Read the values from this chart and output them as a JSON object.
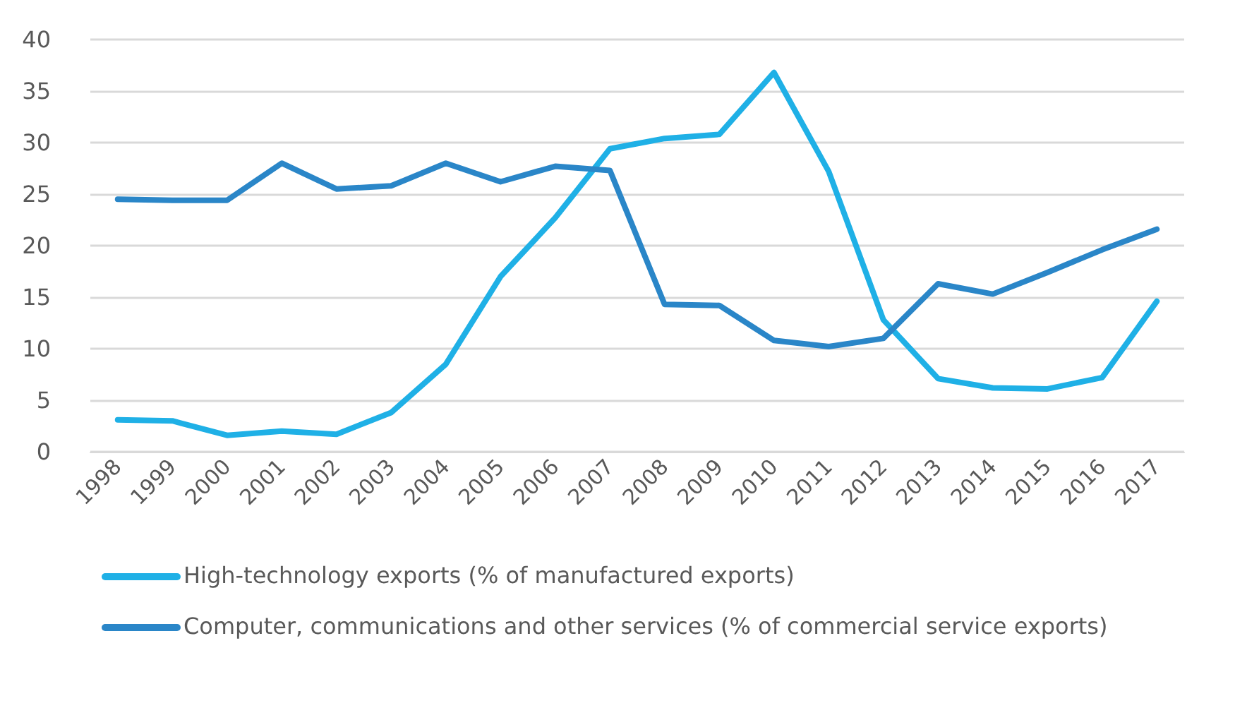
{
  "chart_data": {
    "type": "line",
    "categories": [
      "1998",
      "1999",
      "2000",
      "2001",
      "2002",
      "2003",
      "2004",
      "2005",
      "2006",
      "2007",
      "2008",
      "2009",
      "2010",
      "2011",
      "2012",
      "2013",
      "2014",
      "2015",
      "2016",
      "2017"
    ],
    "series": [
      {
        "name": "High-technology exports (% of manufactured exports)",
        "color": "#1fb0e6",
        "values": [
          3.1,
          3.0,
          1.6,
          2.0,
          1.7,
          3.8,
          8.5,
          17.0,
          22.7,
          29.4,
          30.4,
          30.8,
          36.8,
          27.2,
          12.8,
          7.1,
          6.2,
          6.1,
          7.2,
          14.6
        ]
      },
      {
        "name": "Computer, communications and other services (% of commercial service exports)",
        "color": "#2a86c8",
        "values": [
          24.5,
          24.4,
          24.4,
          28.0,
          25.5,
          25.8,
          28.0,
          26.2,
          27.7,
          27.3,
          14.3,
          14.2,
          10.8,
          10.2,
          11.0,
          16.3,
          15.3,
          17.4,
          19.6,
          21.6
        ]
      }
    ],
    "ylim": [
      0,
      40
    ],
    "yticks": [
      0,
      5,
      10,
      15,
      20,
      25,
      30,
      35,
      40
    ],
    "grid": "y",
    "legend": "bottom",
    "marker": "none",
    "line_style": "solid"
  }
}
